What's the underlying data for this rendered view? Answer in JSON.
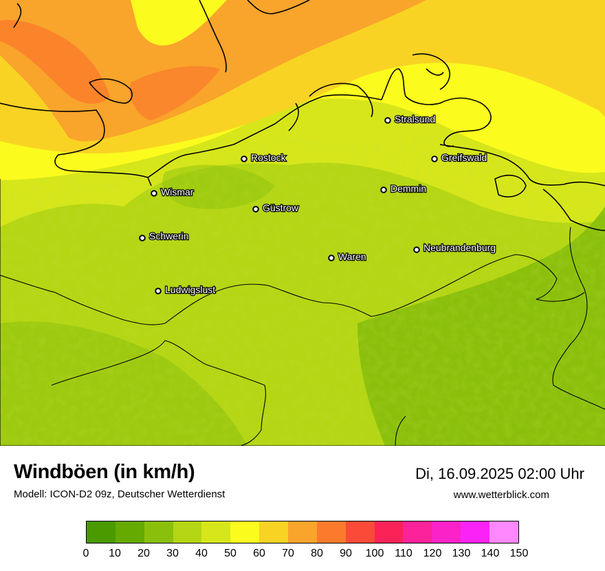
{
  "map": {
    "cities": [
      {
        "name": "Stralsund"
      },
      {
        "name": "Rostock"
      },
      {
        "name": "Greifswald"
      },
      {
        "name": "Wismar"
      },
      {
        "name": "Demmin"
      },
      {
        "name": "Güstrow"
      },
      {
        "name": "Schwerin"
      },
      {
        "name": "Neubrandenburg"
      },
      {
        "name": "Waren"
      },
      {
        "name": "Ludwigslust"
      }
    ]
  },
  "footer": {
    "title": "Windböen (in km/h)",
    "subtitle": "Modell: ICON-D2 09z, Deutscher Wetterdienst",
    "datetime": "Di, 16.09.2025 02:00 Uhr",
    "website": "www.wetterblick.com"
  },
  "legend": {
    "ticks": [
      "0",
      "10",
      "20",
      "30",
      "40",
      "50",
      "60",
      "70",
      "80",
      "90",
      "100",
      "110",
      "120",
      "130",
      "140",
      "150"
    ],
    "colors": [
      "#4a9a00",
      "#65aa00",
      "#8ac00c",
      "#b4d614",
      "#d6e61a",
      "#fbfb1e",
      "#f9d323",
      "#f9a42b",
      "#fb7a2c",
      "#fb4a38",
      "#fb2258",
      "#fb229a",
      "#fb22c8",
      "#fb22f8",
      "#ff88ff"
    ]
  }
}
